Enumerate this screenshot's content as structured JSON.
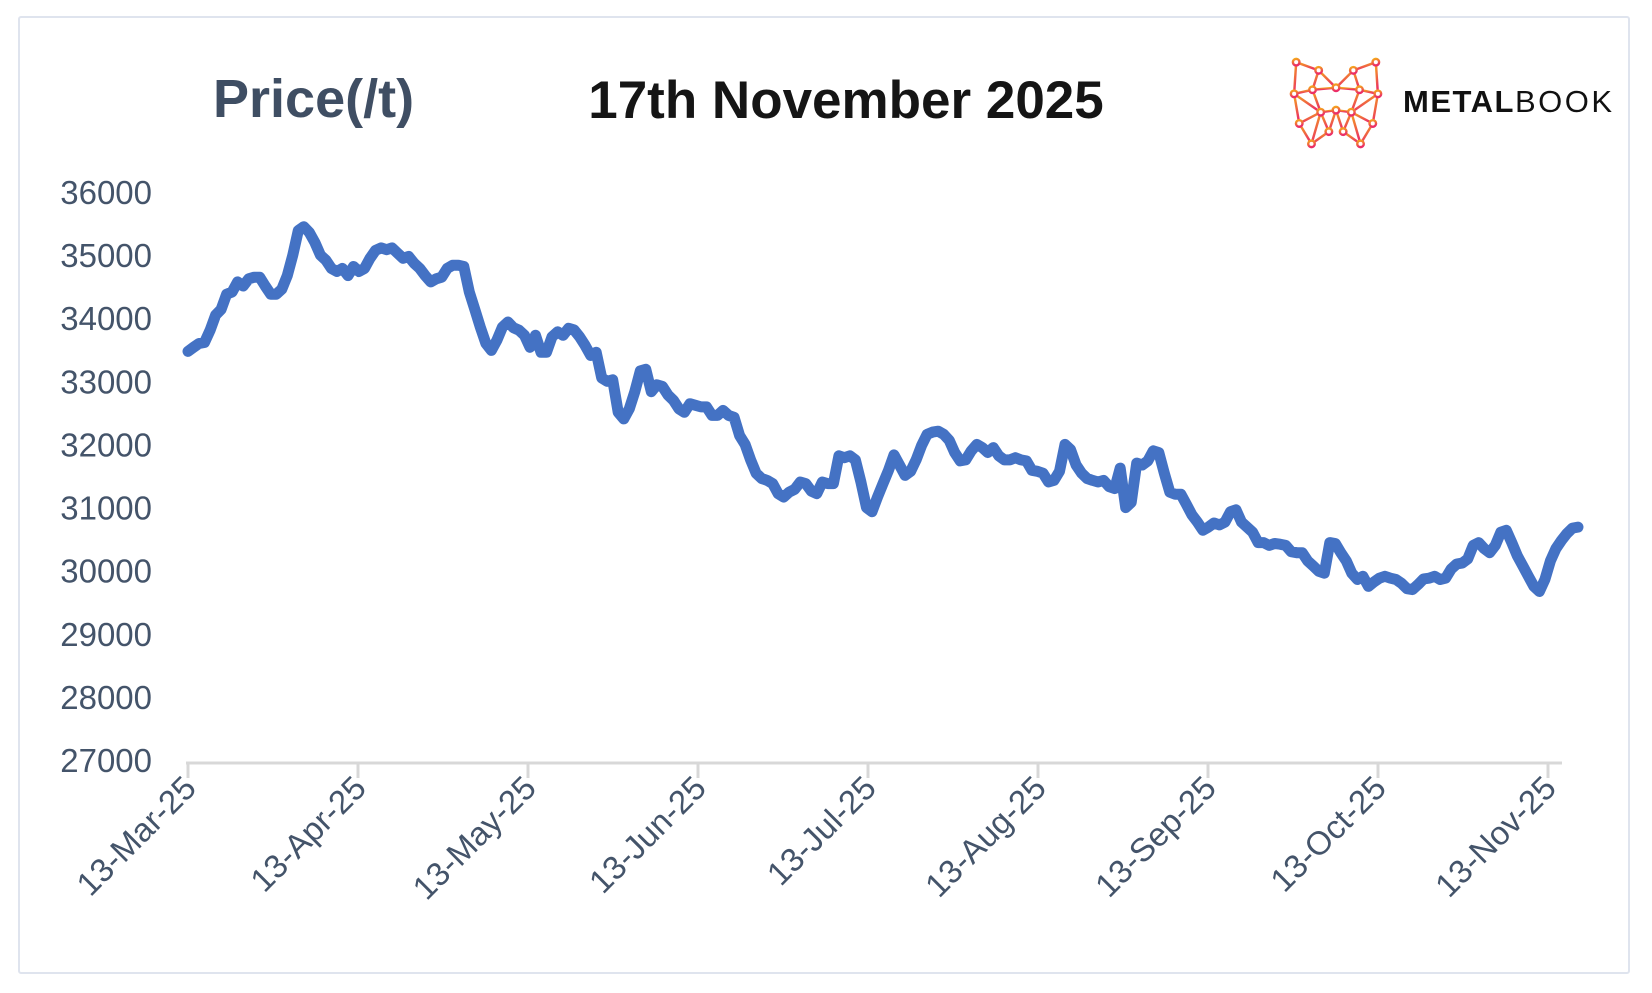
{
  "header": {
    "title": "Price(/t)",
    "date": "17th November 2025",
    "logo": {
      "metal": "METAL",
      "book": "BOOK"
    }
  },
  "colors": {
    "line": "#4472C4",
    "title_text": "#3F4E63",
    "date_text": "#151515",
    "axis_label": "#44546A",
    "axis_line": "#D8D8D8",
    "card_border": "#DFE4EE",
    "logo_gradient_top": "#F5A81C",
    "logo_gradient_bottom": "#EB2D69",
    "logo_text": "#111111"
  },
  "chart_data": {
    "type": "line",
    "title": "Price(/t)",
    "subtitle": "17th November 2025",
    "grid": false,
    "legend": false,
    "ylim": [
      27000,
      36000
    ],
    "y_ticks": [
      36000,
      35000,
      34000,
      33000,
      32000,
      31000,
      30000,
      29000,
      28000,
      27000
    ],
    "x_tick_labels": [
      "13-Mar-25",
      "13-Apr-25",
      "13-May-25",
      "13-Jun-25",
      "13-Jul-25",
      "13-Aug-25",
      "13-Sep-25",
      "13-Oct-25",
      "13-Nov-25"
    ],
    "x_range": [
      "13-Mar-25",
      "17-Nov-25"
    ],
    "sampling": "approximately daily readings, estimated from plot",
    "series": [
      {
        "name": "Price",
        "values": [
          33475,
          33540,
          33600,
          33615,
          33810,
          34050,
          34140,
          34380,
          34415,
          34575,
          34510,
          34625,
          34650,
          34650,
          34510,
          34380,
          34380,
          34460,
          34675,
          35000,
          35390,
          35450,
          35360,
          35200,
          35000,
          34920,
          34790,
          34740,
          34790,
          34675,
          34820,
          34740,
          34790,
          34950,
          35075,
          35115,
          35085,
          35115,
          35030,
          34950,
          34980,
          34870,
          34790,
          34675,
          34575,
          34625,
          34650,
          34790,
          34840,
          34840,
          34820,
          34415,
          34140,
          33860,
          33600,
          33490,
          33650,
          33860,
          33940,
          33850,
          33810,
          33730,
          33540,
          33730,
          33460,
          33460,
          33705,
          33785,
          33730,
          33840,
          33815,
          33705,
          33570,
          33410,
          33460,
          33055,
          33000,
          33025,
          32510,
          32405,
          32565,
          32835,
          33165,
          33190,
          32835,
          32945,
          32920,
          32785,
          32700,
          32565,
          32510,
          32645,
          32620,
          32595,
          32595,
          32460,
          32460,
          32540,
          32460,
          32430,
          32140,
          32000,
          31755,
          31545,
          31460,
          31430,
          31380,
          31220,
          31165,
          31245,
          31290,
          31405,
          31380,
          31260,
          31220,
          31405,
          31380,
          31380,
          31820,
          31790,
          31820,
          31755,
          31405,
          31000,
          30935,
          31165,
          31380,
          31590,
          31835,
          31675,
          31510,
          31575,
          31755,
          31985,
          32160,
          32195,
          32210,
          32160,
          32065,
          31870,
          31740,
          31755,
          31900,
          32000,
          31950,
          31870,
          31950,
          31820,
          31755,
          31755,
          31790,
          31755,
          31740,
          31590,
          31575,
          31545,
          31405,
          31430,
          31575,
          32000,
          31920,
          31675,
          31545,
          31460,
          31430,
          31405,
          31430,
          31330,
          31300,
          31625,
          31000,
          31080,
          31705,
          31675,
          31740,
          31900,
          31870,
          31545,
          31245,
          31210,
          31210,
          31050,
          30885,
          30770,
          30640,
          30690,
          30755,
          30725,
          30770,
          30935,
          30965,
          30770,
          30690,
          30610,
          30445,
          30445,
          30400,
          30430,
          30420,
          30400,
          30300,
          30285,
          30285,
          30155,
          30075,
          29990,
          29960,
          30445,
          30430,
          30285,
          30155,
          29960,
          29860,
          29910,
          29750,
          29820,
          29880,
          29910,
          29880,
          29860,
          29800,
          29715,
          29700,
          29780,
          29870,
          29880,
          29910,
          29860,
          29880,
          30025,
          30105,
          30120,
          30185,
          30400,
          30445,
          30350,
          30285,
          30400,
          30610,
          30640,
          30445,
          30235,
          30075,
          29910,
          29750,
          29670,
          29860,
          30155,
          30350,
          30480,
          30590,
          30675,
          30690
        ]
      }
    ]
  }
}
